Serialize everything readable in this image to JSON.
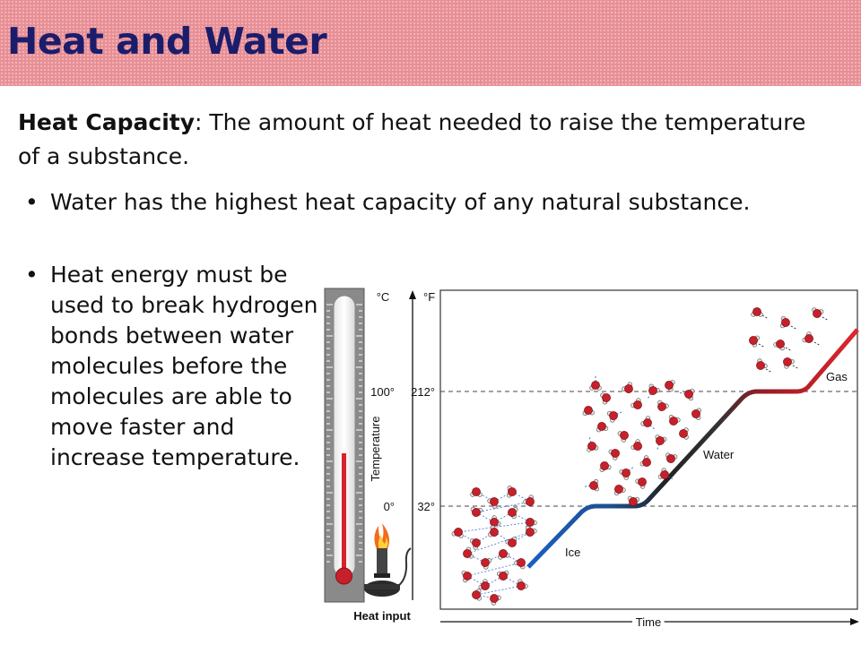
{
  "slide": {
    "title": "Heat and Water",
    "definition": {
      "term": "Heat Capacity",
      "separator": ":  ",
      "text": "The amount of heat needed to raise the temperature of a substance."
    },
    "bullets": [
      "Water has the highest heat capacity of any natural substance.",
      "Heat energy must be used to break hydrogen bonds between water molecules before the molecules are able to move faster and increase temperature."
    ],
    "colors": {
      "banner": "#e88f95",
      "title": "#1b1d6b",
      "ice": "#1a5fc4",
      "water": "#111111",
      "gas": "#d6242c",
      "molecule": "#c8202a"
    }
  },
  "figure": {
    "icons": [
      "thermometer-icon",
      "bunsen-burner-icon",
      "ice-lattice-icon",
      "water-molecules-icon",
      "gas-molecules-icon"
    ],
    "thermometer_label": "Heat input",
    "unit_c": "°C",
    "unit_f": "°F",
    "y_axis_label": "Temperature",
    "x_axis_label": "Time",
    "ticks": [
      {
        "c": "100°",
        "f": "212°"
      },
      {
        "c": "0°",
        "f": "32°"
      }
    ],
    "phase_labels": {
      "ice": "Ice",
      "water": "Water",
      "gas": "Gas"
    }
  }
}
